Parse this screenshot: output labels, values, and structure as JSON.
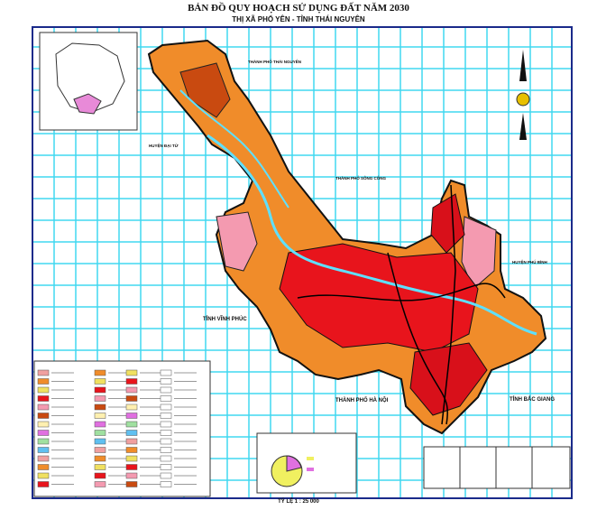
{
  "header": {
    "title": "BẢN ĐỒ QUY HOẠCH SỬ DỤNG ĐẤT NĂM 2030",
    "subtitle": "THỊ XÃ PHỔ YÊN - TỈNH THÁI NGUYÊN"
  },
  "places": [
    "THÀNH PHỐ THÁI NGUYÊN",
    "HUYỆN ĐẠI TỪ",
    "THÀNH PHỐ SÔNG CÔNG",
    "HUYỆN PHÚ BÌNH",
    "TỈNH VĨNH PHÚC",
    "THÀNH PHỐ HÀ NỘI",
    "TỈNH BẮC GIANG"
  ],
  "scale": "TỶ LỆ 1 : 25 000"
}
